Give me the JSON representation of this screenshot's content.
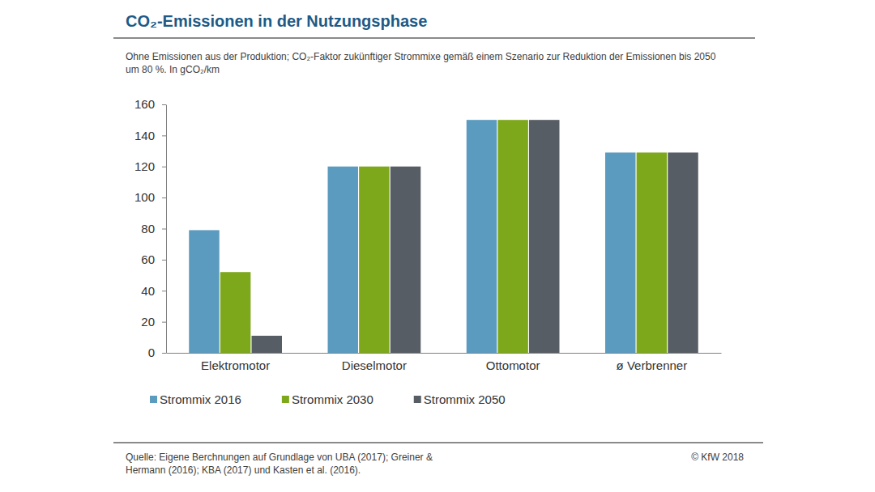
{
  "chart_data": {
    "type": "bar",
    "title": "CO₂-Emissionen in der Nutzungsphase",
    "subtitle": "Ohne Emissionen aus der Produktion; CO₂-Faktor zukünftiger Strommixe gemäß einem Szenario zur Reduktion der Emissionen bis 2050 um 80 %. In gCO₂/km",
    "categories": [
      "Elektromotor",
      "Dieselmotor",
      "Ottomotor",
      "ø Verbrenner"
    ],
    "series": [
      {
        "name": "Strommix 2016",
        "color": "#5b9bbf",
        "values": [
          79,
          120,
          150,
          129
        ]
      },
      {
        "name": "Strommix 2030",
        "color": "#7ea81c",
        "values": [
          52,
          120,
          150,
          129
        ]
      },
      {
        "name": "Strommix 2050",
        "color": "#575d64",
        "values": [
          11,
          120,
          150,
          129
        ]
      }
    ],
    "ylim": [
      0,
      160
    ],
    "yticks": [
      0,
      20,
      40,
      60,
      80,
      100,
      120,
      140,
      160
    ],
    "grid": false,
    "legend": "bottom-left",
    "source": "Quelle: Eigene Berchnungen auf Grundlage von UBA (2017); Greiner & Hermann (2016); KBA (2017) und Kasten et al. (2016).",
    "copyright": "© KfW 2018"
  }
}
